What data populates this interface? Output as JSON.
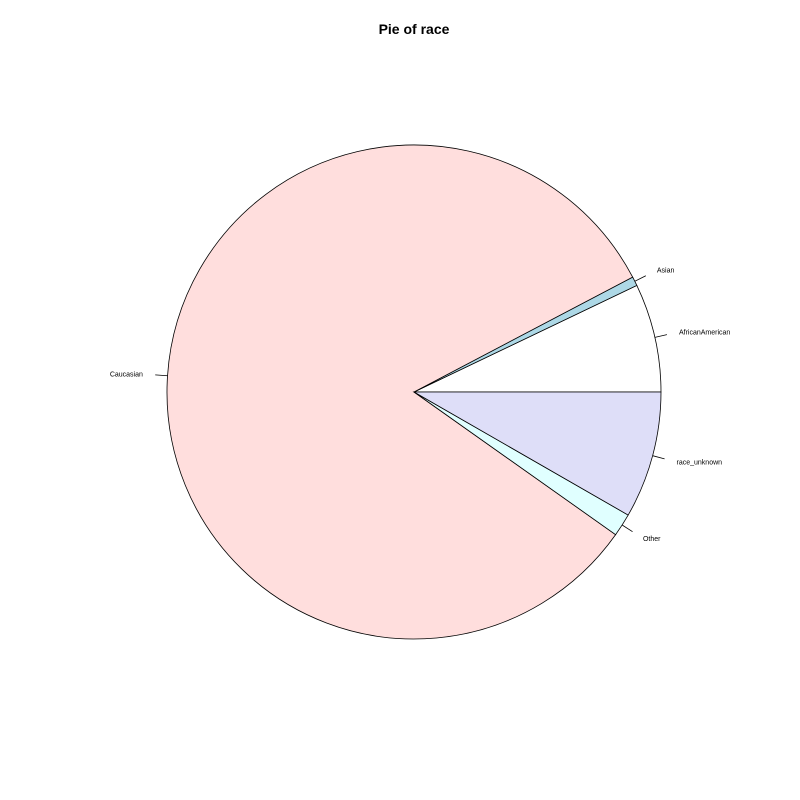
{
  "chart_data": {
    "type": "pie",
    "title": "Pie of race",
    "slices": [
      {
        "label": "AfricanAmerican",
        "value": 7.1,
        "color": "#FFFFFF"
      },
      {
        "label": "Asian",
        "value": 0.6,
        "color": "#ADD8E6"
      },
      {
        "label": "Caucasian",
        "value": 82.5,
        "color": "#FFDEDD"
      },
      {
        "label": "Other",
        "value": 1.5,
        "color": "#E0FFFF"
      },
      {
        "label": "race_unknown",
        "value": 8.3,
        "color": "#DEDEF8"
      }
    ],
    "start_angle_deg": 0,
    "direction": "counterclockwise"
  }
}
